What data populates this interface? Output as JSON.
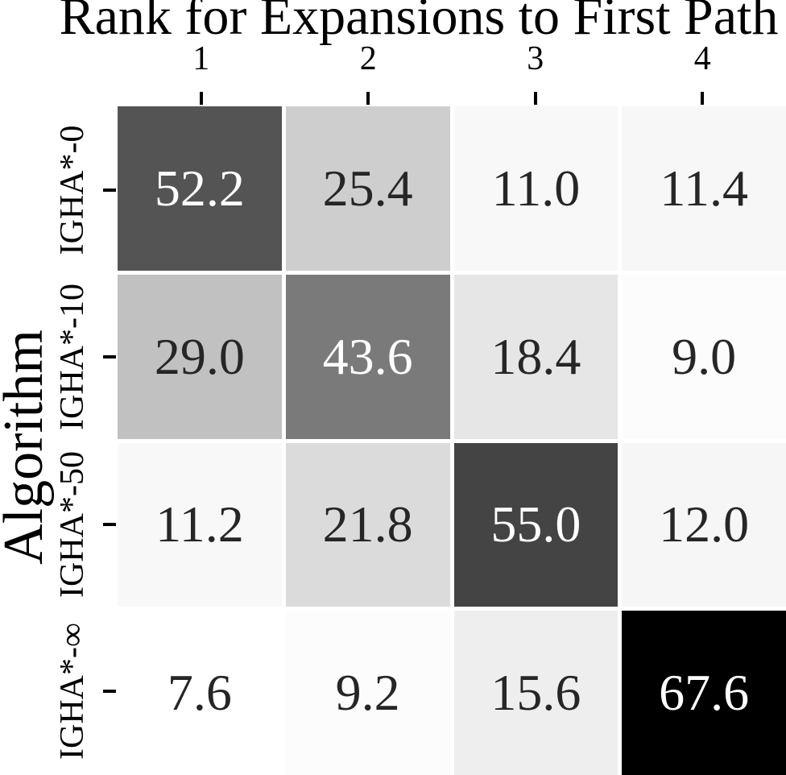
{
  "chart_data": {
    "type": "heatmap",
    "title": "Rank for Expansions to First Path",
    "ylabel": "Algorithm",
    "xlabel": "",
    "x_tick_labels": [
      "1",
      "2",
      "3",
      "4"
    ],
    "y_tick_labels": [
      "IGHA*-0",
      "IGHA*-10",
      "IGHA*-50",
      "IGHA*-∞"
    ],
    "values": [
      [
        52.2,
        25.4,
        11.0,
        11.4
      ],
      [
        29.0,
        43.6,
        18.4,
        9.0
      ],
      [
        11.2,
        21.8,
        55.0,
        12.0
      ],
      [
        7.6,
        9.2,
        15.6,
        67.6
      ]
    ],
    "value_labels": [
      [
        "52.2",
        "25.4",
        "11.0",
        "11.4"
      ],
      [
        "29.0",
        "43.6",
        "18.4",
        "9.0"
      ],
      [
        "11.2",
        "21.8",
        "55.0",
        "12.0"
      ],
      [
        "7.6",
        "9.2",
        "15.6",
        "67.6"
      ]
    ],
    "cell_bg": [
      [
        "#545454",
        "#cecece",
        "#f8f8f8",
        "#f7f7f7"
      ],
      [
        "#c1c1c1",
        "#7a7a7a",
        "#e6e6e6",
        "#fcfcfc"
      ],
      [
        "#f8f8f8",
        "#dbdbdb",
        "#444444",
        "#f6f6f6"
      ],
      [
        "#ffffff",
        "#fcfcfc",
        "#eeeeee",
        "#000000"
      ]
    ],
    "cell_fg": [
      [
        "#ffffff",
        "#262626",
        "#262626",
        "#262626"
      ],
      [
        "#262626",
        "#ffffff",
        "#262626",
        "#262626"
      ],
      [
        "#262626",
        "#262626",
        "#ffffff",
        "#262626"
      ],
      [
        "#262626",
        "#262626",
        "#262626",
        "#ffffff"
      ]
    ],
    "colormap": "Greys",
    "value_range": [
      7.6,
      67.6
    ],
    "grid_line_color": "#ffffff",
    "axis_text_color": "#000000",
    "legend": "none",
    "grid": "off"
  }
}
